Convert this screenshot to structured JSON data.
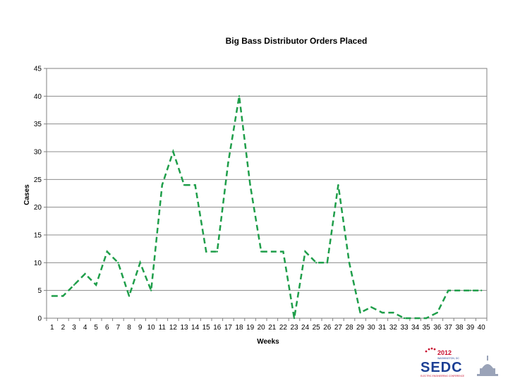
{
  "chart_data": {
    "type": "line",
    "title": "Big Bass Distributor Orders Placed",
    "xlabel": "Weeks",
    "ylabel": "Cases",
    "categories": [
      "1",
      "2",
      "3",
      "4",
      "5",
      "6",
      "7",
      "8",
      "9",
      "10",
      "11",
      "12",
      "13",
      "14",
      "15",
      "16",
      "17",
      "18",
      "19",
      "20",
      "21",
      "22",
      "23",
      "24",
      "25",
      "26",
      "27",
      "28",
      "29",
      "30",
      "31",
      "32",
      "33",
      "34",
      "35",
      "36",
      "37",
      "38",
      "39",
      "40"
    ],
    "series": [
      {
        "values": [
          4,
          4,
          6,
          8,
          6,
          12,
          10,
          4,
          10,
          5,
          24,
          30,
          24,
          24,
          12,
          12,
          28,
          40,
          24,
          12,
          12,
          12,
          0,
          12,
          10,
          10,
          24,
          10,
          1,
          2,
          1,
          1,
          0,
          0,
          0,
          1,
          5,
          5,
          5,
          5
        ],
        "color": "#1f9e4a",
        "style": "dashed"
      }
    ],
    "ylim": [
      0,
      45
    ],
    "yticks": [
      0,
      5,
      10,
      15,
      20,
      25,
      30,
      35,
      40,
      45
    ],
    "grid": true,
    "legend": "none"
  },
  "logo": {
    "year": "2012",
    "city": "WASHINGTON, DC",
    "name": "SEDC",
    "subtitle": "ELECTRIC ENGINEERING CONFERENCE"
  }
}
